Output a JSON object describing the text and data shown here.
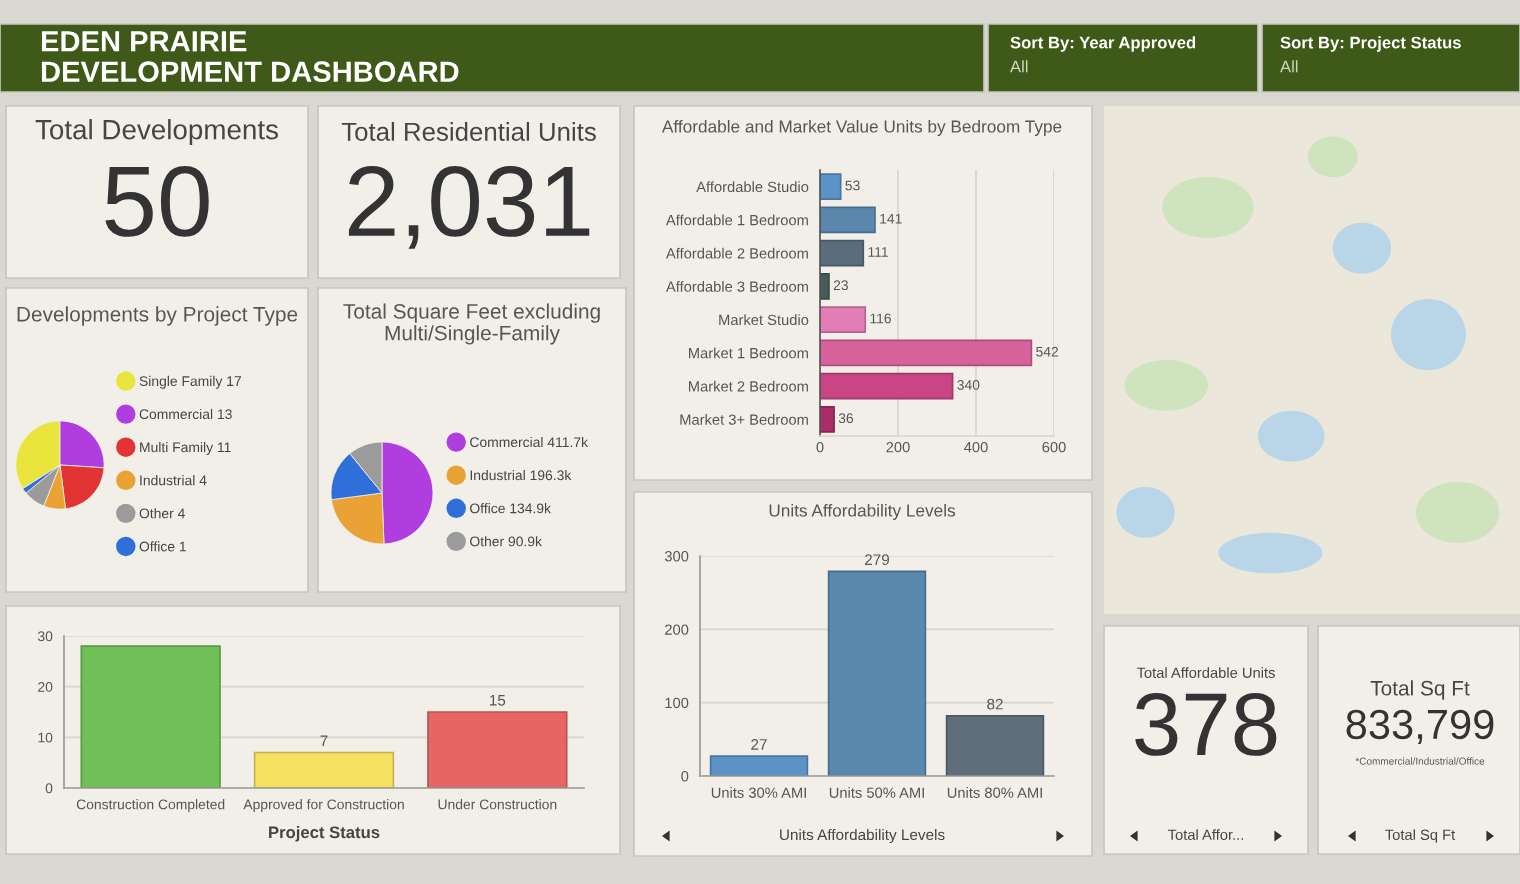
{
  "chart_data": [
    {
      "type": "other",
      "title": "EDEN PRAIRIE\nDEVELOPMENT DASHBOARD",
      "annotations": [
        "Sort By: Year Approved",
        "All",
        "Sort By: Project Status",
        "All"
      ]
    },
    {
      "type": "other",
      "title": "Total Developments",
      "annotations": [
        "50"
      ]
    },
    {
      "type": "other",
      "title": "Total Residential Units",
      "annotations": [
        "2,031"
      ]
    },
    {
      "type": "bar",
      "orientation": "horizontal",
      "title": "Affordable and Market Value Units by Bedroom Type",
      "categories": [
        "Affordable Studio",
        "Affordable 1 Bedroom",
        "Affordable 2 Bedroom",
        "Affordable 3 Bedroom",
        "Market Studio",
        "Market 1 Bedroom",
        "Market 2 Bedroom",
        "Market 3+ Bedroom"
      ],
      "values": [
        53,
        141,
        111,
        23,
        116,
        542,
        340,
        36
      ],
      "colors": [
        "#5b93c6",
        "#5a87ae",
        "#5a6d7c",
        "#475b57",
        "#e37db6",
        "#d8629c",
        "#c84686",
        "#a82d69"
      ],
      "xlim": [
        0,
        600
      ],
      "xticks": [
        0,
        200,
        400,
        600
      ],
      "grid": "x",
      "data_labels": true
    },
    {
      "type": "pie",
      "title": "Developments by Project Type",
      "categories": [
        "Single Family",
        "Commercial",
        "Multi Family",
        "Industrial",
        "Other",
        "Office"
      ],
      "values": [
        17,
        13,
        11,
        4,
        4,
        1
      ],
      "value_labels": [
        "17",
        "13",
        "11",
        "4",
        "4",
        "1"
      ],
      "colors": [
        "#e9e53c",
        "#b03de0",
        "#e23434",
        "#e9a233",
        "#9b9b9b",
        "#2f6fda"
      ],
      "legend": "right"
    },
    {
      "type": "pie",
      "title": "Total Square Feet excluding\nMulti/Single-Family",
      "categories": [
        "Commercial",
        "Industrial",
        "Office",
        "Other"
      ],
      "values": [
        411.7,
        196.3,
        134.9,
        90.9
      ],
      "value_labels": [
        "411.7k",
        "196.3k",
        "134.9k",
        "90.9k"
      ],
      "colors": [
        "#b03de0",
        "#e9a233",
        "#2f6fda",
        "#9b9b9b"
      ],
      "legend": "right"
    },
    {
      "type": "bar",
      "categories": [
        "Construction Completed",
        "Approved for Construction",
        "Under Construction"
      ],
      "values": [
        28,
        7,
        15
      ],
      "value_labels": [
        null,
        "7",
        "15"
      ],
      "colors": [
        "#70c057",
        "#f6e160",
        "#e86565"
      ],
      "xlabel": "Project Status",
      "ylim": [
        0,
        30
      ],
      "yticks": [
        0,
        10,
        20,
        30
      ],
      "grid": "y"
    },
    {
      "type": "bar",
      "title": "Units Affordability Levels",
      "categories": [
        "Units 30% AMI",
        "Units 50% AMI",
        "Units 80% AMI"
      ],
      "values": [
        27,
        279,
        82
      ],
      "colors": [
        "#5b93c6",
        "#5b88ad",
        "#5e6e7a"
      ],
      "ylim": [
        0,
        300
      ],
      "yticks": [
        0,
        100,
        200,
        300
      ],
      "grid": "y",
      "data_labels": true,
      "annotations": [
        "Units Affordability Levels"
      ]
    },
    {
      "type": "other",
      "title": "Total Affordable Units",
      "annotations": [
        "378",
        "Total Affor..."
      ]
    },
    {
      "type": "other",
      "title": "Total Sq Ft",
      "annotations": [
        "833,799",
        "*Commercial/Industrial/Office",
        "Total Sq Ft"
      ]
    }
  ]
}
